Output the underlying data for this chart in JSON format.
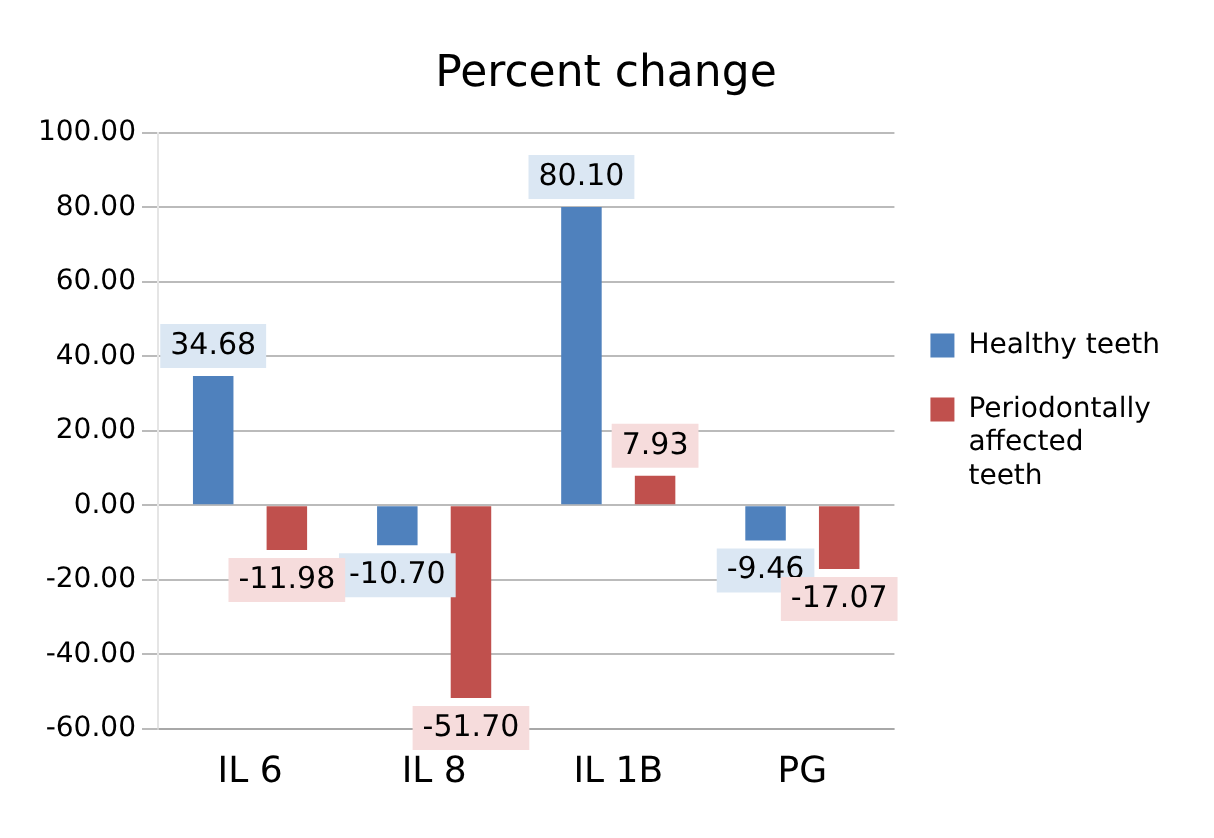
{
  "chart_data": {
    "type": "bar",
    "title": "Percent change",
    "categories": [
      "IL 6",
      "IL 8",
      "IL 1B",
      "PG"
    ],
    "series": [
      {
        "name": "Healthy teeth",
        "color": "#4f81bd",
        "values": [
          34.68,
          -10.7,
          80.1,
          -9.46
        ],
        "value_labels": [
          "34.68",
          "-10.70",
          "80.10",
          "-9.46"
        ]
      },
      {
        "name": "Periodontally affected teeth",
        "color": "#c0504d",
        "values": [
          -11.98,
          -51.7,
          7.93,
          -17.07
        ],
        "value_labels": [
          "-11.98",
          "-51.70",
          "7.93",
          "-17.07"
        ]
      }
    ],
    "ylim": [
      -60,
      100
    ],
    "yticks": [
      {
        "value": -60,
        "label": "-60.00"
      },
      {
        "value": -40,
        "label": "-40.00"
      },
      {
        "value": -20,
        "label": "-20.00"
      },
      {
        "value": 0,
        "label": "0.00"
      },
      {
        "value": 20,
        "label": "20.00"
      },
      {
        "value": 40,
        "label": "40.00"
      },
      {
        "value": 60,
        "label": "60.00"
      },
      {
        "value": 80,
        "label": "80.00"
      },
      {
        "value": 100,
        "label": "100.00"
      }
    ],
    "grid": "y",
    "legend": "right"
  }
}
